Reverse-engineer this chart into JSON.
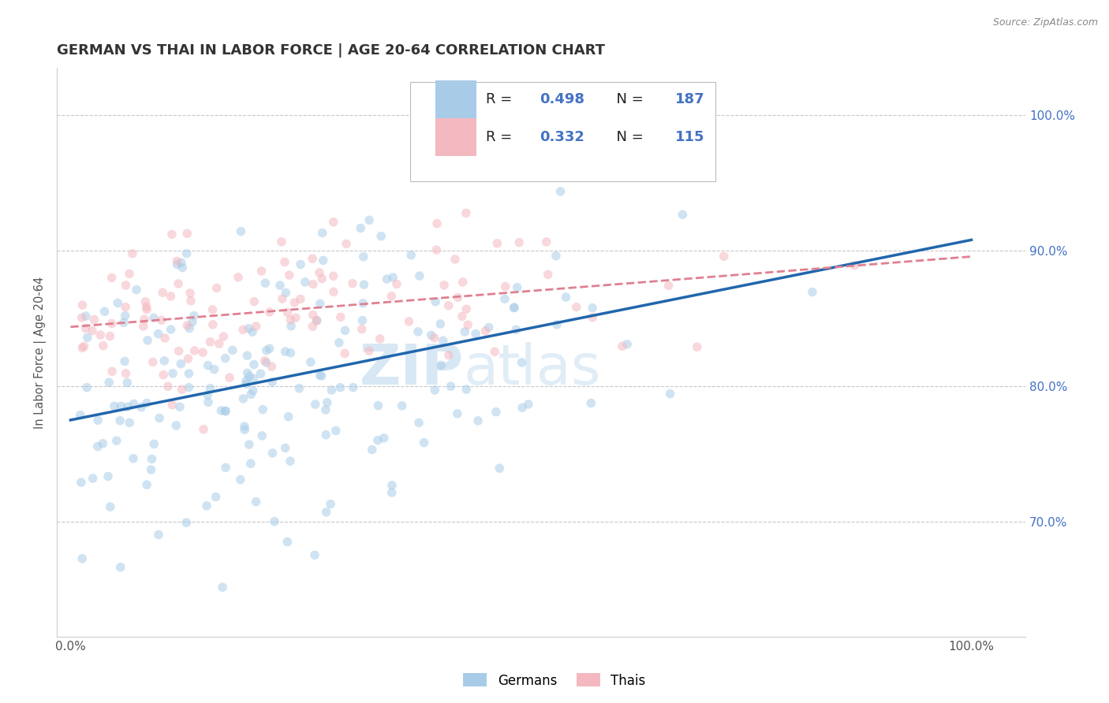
{
  "title": "GERMAN VS THAI IN LABOR FORCE | AGE 20-64 CORRELATION CHART",
  "source_text": "Source: ZipAtlas.com",
  "ylabel": "In Labor Force | Age 20-64",
  "ytick_labels": [
    "70.0%",
    "80.0%",
    "90.0%",
    "100.0%"
  ],
  "ytick_values": [
    0.7,
    0.8,
    0.9,
    1.0
  ],
  "xtick_labels": [
    "0.0%",
    "100.0%"
  ],
  "xtick_values": [
    0.0,
    1.0
  ],
  "legend_labels": [
    "Germans",
    "Thais"
  ],
  "r_german": 0.498,
  "n_german": 187,
  "r_thai": 0.332,
  "n_thai": 115,
  "german_color": "#a8cce8",
  "thai_color": "#f4b8c0",
  "german_line_color": "#2166ac",
  "thai_line_color": "#e08090",
  "watermark_color": "#c8dff0",
  "background_color": "#ffffff",
  "grid_color": "#c8c8c8",
  "title_color": "#333333",
  "title_fontsize": 13,
  "axis_label_color": "#555555",
  "ytick_color": "#4472c4",
  "scatter_alpha": 0.55,
  "scatter_size": 70
}
